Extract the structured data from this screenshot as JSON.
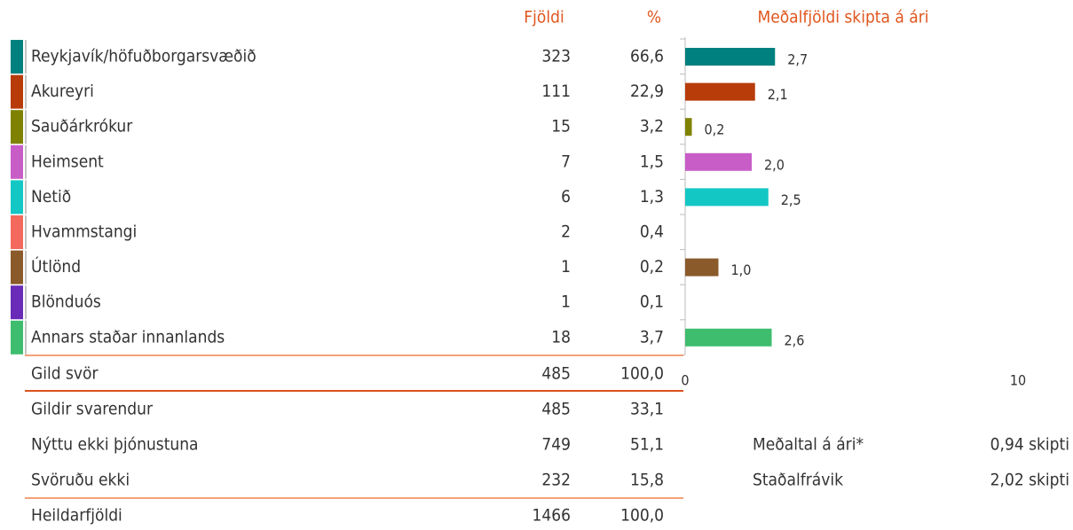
{
  "table": {
    "headers": [
      "Fjöldi",
      "%"
    ],
    "rows": [
      [
        "Reykjavík/höfuðborgarsvæðið",
        "323",
        "66,6"
      ],
      [
        "Akureyri",
        "111",
        "22,9"
      ],
      [
        "Sauðárkrókur",
        "15",
        "3,2"
      ],
      [
        "Heimsent",
        "7",
        "1,5"
      ],
      [
        "Netið",
        "6",
        "1,3"
      ],
      [
        "Hvammstangi",
        "2",
        "0,4"
      ],
      [
        "Útlönd",
        "1",
        "0,2"
      ],
      [
        "Blönduós",
        "1",
        "0,1"
      ],
      [
        "Annars staðar innanlands",
        "18",
        "3,7"
      ]
    ],
    "total": [
      "Gild svör",
      "485",
      "100,0"
    ],
    "summary": [
      [
        "Gildir svarendur",
        "485",
        "33,1"
      ],
      [
        "Nýttu ekki þjónustuna",
        "749",
        "51,1"
      ],
      [
        "Svöruðu ekki",
        "232",
        "15,8"
      ]
    ],
    "grand_total": [
      "Heildarfjöldi",
      "1466",
      "100,0"
    ]
  },
  "chart_data": {
    "type": "bar",
    "orientation": "horizontal",
    "title": "Meðalfjöldi skipta á ári",
    "values": [
      2.7,
      2.1,
      0.2,
      2.0,
      2.5,
      null,
      1.0,
      null,
      2.6
    ],
    "value_labels": [
      "2,7",
      "2,1",
      "0,2",
      "2,0",
      "2,5",
      null,
      "1,0",
      null,
      "2,6"
    ],
    "colors": [
      "#00807f",
      "#b83c0a",
      "#7f8200",
      "#c85dc8",
      "#13c7c4",
      "#f4695d",
      "#8b5a2b",
      "#6a2bb8",
      "#3ebd6e"
    ],
    "xlim": [
      0,
      10
    ],
    "xticks": [
      0,
      10
    ]
  },
  "stats": [
    [
      "Meðaltal á ári*",
      "0,94 skipti"
    ],
    [
      "Staðalfrávik",
      "2,02 skipti"
    ]
  ]
}
